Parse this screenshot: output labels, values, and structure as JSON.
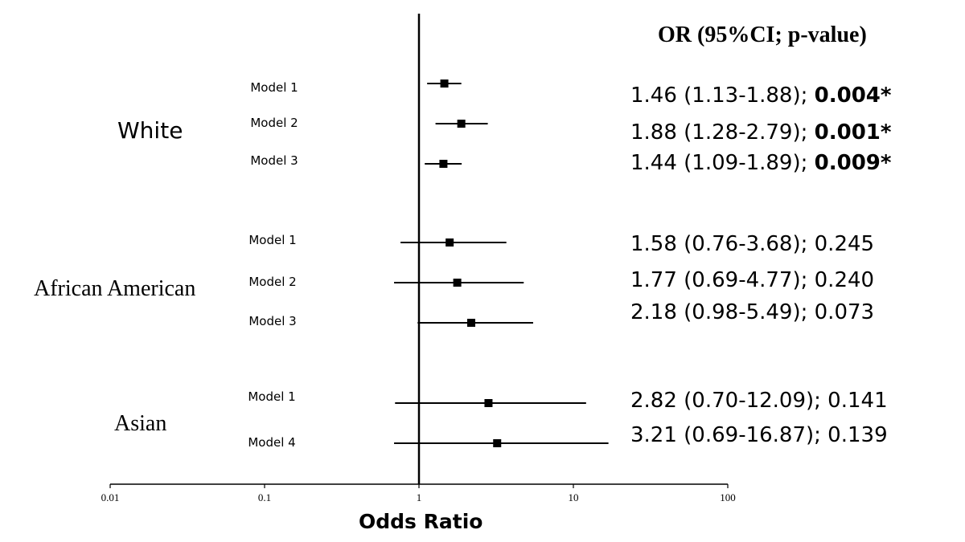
{
  "chart_data": {
    "type": "forest",
    "x_scale": "log",
    "xlim": [
      0.01,
      100
    ],
    "x_ticks": [
      "0.01",
      "0.1",
      "1",
      "10",
      "100"
    ],
    "reference_line": 1,
    "xlabel": "Odds Ratio",
    "table_header": "OR (95%CI; p-value)",
    "groups": [
      {
        "name": "White",
        "rows": [
          {
            "model": "Model 1",
            "or": 1.46,
            "ci_low": 1.13,
            "ci_high": 1.88,
            "or_ci": "1.46 (1.13-1.88); ",
            "p": "0.004*",
            "significant": true
          },
          {
            "model": "Model 2",
            "or": 1.88,
            "ci_low": 1.28,
            "ci_high": 2.79,
            "or_ci": "1.88 (1.28-2.79); ",
            "p": "0.001*",
            "significant": true
          },
          {
            "model": "Model 3",
            "or": 1.44,
            "ci_low": 1.09,
            "ci_high": 1.89,
            "or_ci": "1.44 (1.09-1.89); ",
            "p": "0.009*",
            "significant": true
          }
        ]
      },
      {
        "name": "African American",
        "rows": [
          {
            "model": "Model 1",
            "or": 1.58,
            "ci_low": 0.76,
            "ci_high": 3.68,
            "or_ci": "1.58 (0.76-3.68); ",
            "p": "0.245",
            "significant": false
          },
          {
            "model": "Model 2",
            "or": 1.77,
            "ci_low": 0.69,
            "ci_high": 4.77,
            "or_ci": "1.77 (0.69-4.77); ",
            "p": "0.240",
            "significant": false
          },
          {
            "model": "Model 3",
            "or": 2.18,
            "ci_low": 0.98,
            "ci_high": 5.49,
            "or_ci": "2.18 (0.98-5.49); ",
            "p": "0.073",
            "significant": false
          }
        ]
      },
      {
        "name": "Asian",
        "rows": [
          {
            "model": "Model 1",
            "or": 2.82,
            "ci_low": 0.7,
            "ci_high": 12.09,
            "or_ci": "2.82 (0.70-12.09); ",
            "p": "0.141",
            "significant": false
          },
          {
            "model": "Model 4",
            "or": 3.21,
            "ci_low": 0.69,
            "ci_high": 16.87,
            "or_ci": "3.21 (0.69-16.87); ",
            "p": "0.139",
            "significant": false
          }
        ]
      }
    ]
  }
}
